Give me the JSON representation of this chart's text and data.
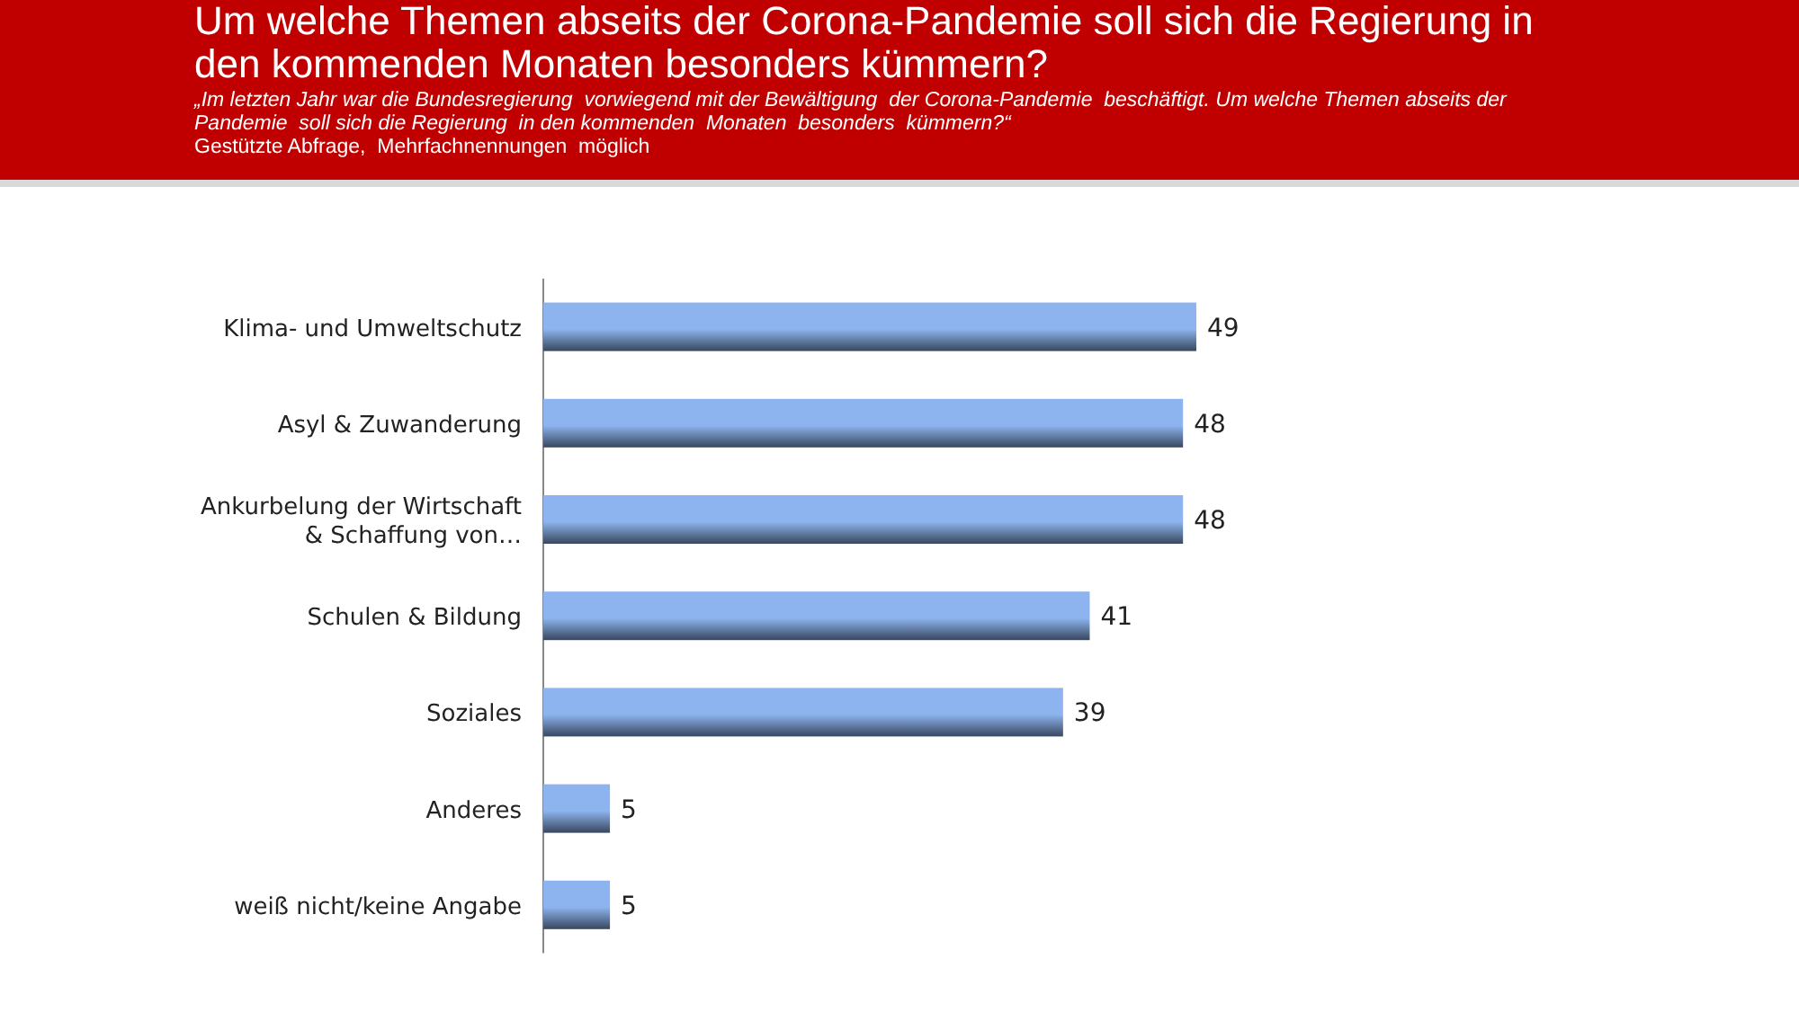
{
  "chart_data": {
    "type": "bar",
    "orientation": "horizontal",
    "title": "Um welche Themen abseits der Corona-Pandemie soll sich die Regierung in den kommenden Monaten besonders kümmern?",
    "subtitle": "„Im letzten Jahr war die Bundesregierung  vorwiegend mit der Bewältigung  der Corona-Pandemie  beschäftigt. Um welche Themen abseits der Pandemie  soll sich die Regierung  in den kommenden  Monaten  besonders  kümmern?“",
    "annotations": [
      "Gestützte Abfrage,  Mehrfachnennungen  möglich"
    ],
    "categories": [
      "Klima- und Umweltschutz",
      "Asyl & Zuwanderung",
      "Ankurbelung der Wirtschaft\n& Schaffung von…",
      "Schulen & Bildung",
      "Soziales",
      "Anderes",
      "weiß nicht/keine Angabe"
    ],
    "values": [
      49,
      48,
      48,
      41,
      39,
      5,
      5
    ],
    "color": "#8db4ee",
    "data_labels": true
  }
}
